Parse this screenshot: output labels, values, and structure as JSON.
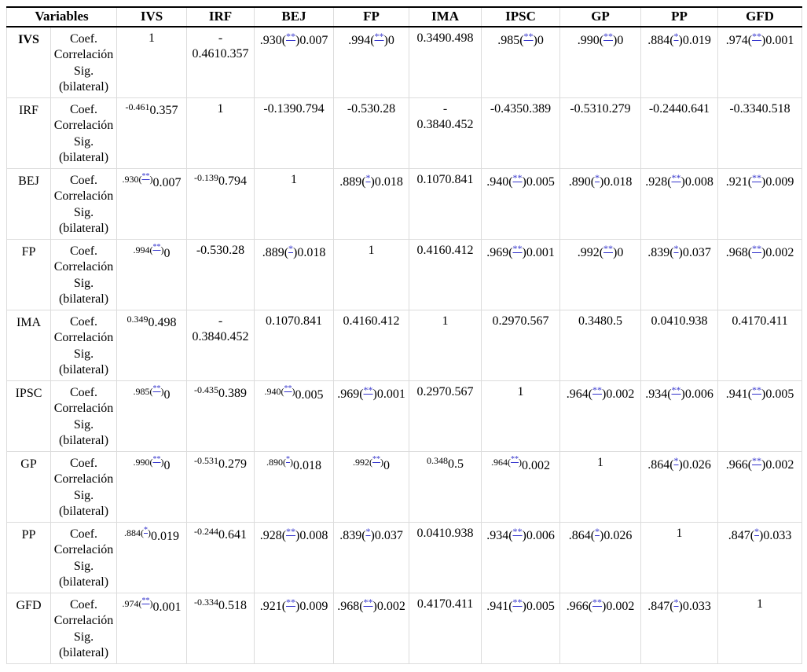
{
  "colors": {
    "sig_link": "#3333cc",
    "grid_line": "#dcdcdc",
    "header_rule": "#000000",
    "text": "#000000",
    "page_background": "#ffffff"
  },
  "table": {
    "header": {
      "variables_label": "Variables",
      "columns": [
        "IVS",
        "IRF",
        "BEJ",
        "FP",
        "IMA",
        "IPSC",
        "GP",
        "PP",
        "GFD"
      ]
    },
    "measure_label": "Coef.\nCorrelación\nSig.\n(bilateral)",
    "rows": [
      {
        "variable": "IVS",
        "cells": [
          [
            {
              "t": "1",
              "s": "n"
            }
          ],
          [
            {
              "t": "-\n0.4610.357",
              "s": "n"
            }
          ],
          [
            {
              "t": ".930(",
              "s": "n"
            },
            {
              "t": "**",
              "s": "m"
            },
            {
              "t": ")0.007",
              "s": "n"
            }
          ],
          [
            {
              "t": ".994(",
              "s": "n"
            },
            {
              "t": "**",
              "s": "m"
            },
            {
              "t": ")0",
              "s": "n"
            }
          ],
          [
            {
              "t": "0.3490.498",
              "s": "n"
            }
          ],
          [
            {
              "t": ".985(",
              "s": "n"
            },
            {
              "t": "**",
              "s": "m"
            },
            {
              "t": ")0",
              "s": "n"
            }
          ],
          [
            {
              "t": ".990(",
              "s": "n"
            },
            {
              "t": "**",
              "s": "m"
            },
            {
              "t": ")0",
              "s": "n"
            }
          ],
          [
            {
              "t": ".884(",
              "s": "n"
            },
            {
              "t": "*",
              "s": "m"
            },
            {
              "t": ")0.019",
              "s": "n"
            }
          ],
          [
            {
              "t": ".974(",
              "s": "n"
            },
            {
              "t": "**",
              "s": "m"
            },
            {
              "t": ")0.001",
              "s": "n"
            }
          ]
        ]
      },
      {
        "variable": "IRF",
        "cells": [
          [
            {
              "t": "-0.461",
              "s": "s"
            },
            {
              "t": "0.357",
              "s": "n"
            }
          ],
          [
            {
              "t": "1",
              "s": "n"
            }
          ],
          [
            {
              "t": "-0.1390.794",
              "s": "n"
            }
          ],
          [
            {
              "t": "-0.530.28",
              "s": "n"
            }
          ],
          [
            {
              "t": "-\n0.3840.452",
              "s": "n"
            }
          ],
          [
            {
              "t": "-0.4350.389",
              "s": "n"
            }
          ],
          [
            {
              "t": "-0.5310.279",
              "s": "n"
            }
          ],
          [
            {
              "t": "-0.2440.641",
              "s": "n"
            }
          ],
          [
            {
              "t": "-0.3340.518",
              "s": "n"
            }
          ]
        ]
      },
      {
        "variable": "BEJ",
        "cells": [
          [
            {
              "t": ".930(",
              "s": "s"
            },
            {
              "t": "**",
              "s": "ms"
            },
            {
              "t": ")",
              "s": "s"
            },
            {
              "t": "0.007",
              "s": "n"
            }
          ],
          [
            {
              "t": "-0.139",
              "s": "s"
            },
            {
              "t": "0.794",
              "s": "n"
            }
          ],
          [
            {
              "t": "1",
              "s": "n"
            }
          ],
          [
            {
              "t": ".889(",
              "s": "n"
            },
            {
              "t": "*",
              "s": "m"
            },
            {
              "t": ")0.018",
              "s": "n"
            }
          ],
          [
            {
              "t": "0.1070.841",
              "s": "n"
            }
          ],
          [
            {
              "t": ".940(",
              "s": "n"
            },
            {
              "t": "**",
              "s": "m"
            },
            {
              "t": ")0.005",
              "s": "n"
            }
          ],
          [
            {
              "t": ".890(",
              "s": "n"
            },
            {
              "t": "*",
              "s": "m"
            },
            {
              "t": ")0.018",
              "s": "n"
            }
          ],
          [
            {
              "t": ".928(",
              "s": "n"
            },
            {
              "t": "**",
              "s": "m"
            },
            {
              "t": ")0.008",
              "s": "n"
            }
          ],
          [
            {
              "t": ".921(",
              "s": "n"
            },
            {
              "t": "**",
              "s": "m"
            },
            {
              "t": ")0.009",
              "s": "n"
            }
          ]
        ]
      },
      {
        "variable": "FP",
        "cells": [
          [
            {
              "t": ".994(",
              "s": "s"
            },
            {
              "t": "**",
              "s": "ms"
            },
            {
              "t": ")",
              "s": "s"
            },
            {
              "t": "0",
              "s": "n"
            }
          ],
          [
            {
              "t": "-0.530.28",
              "s": "n"
            }
          ],
          [
            {
              "t": ".889(",
              "s": "n"
            },
            {
              "t": "*",
              "s": "m"
            },
            {
              "t": ")0.018",
              "s": "n"
            }
          ],
          [
            {
              "t": "1",
              "s": "n"
            }
          ],
          [
            {
              "t": "0.4160.412",
              "s": "n"
            }
          ],
          [
            {
              "t": ".969(",
              "s": "n"
            },
            {
              "t": "**",
              "s": "m"
            },
            {
              "t": ")0.001",
              "s": "n"
            }
          ],
          [
            {
              "t": ".992(",
              "s": "n"
            },
            {
              "t": "**",
              "s": "m"
            },
            {
              "t": ")0",
              "s": "n"
            }
          ],
          [
            {
              "t": ".839(",
              "s": "n"
            },
            {
              "t": "*",
              "s": "m"
            },
            {
              "t": ")0.037",
              "s": "n"
            }
          ],
          [
            {
              "t": ".968(",
              "s": "n"
            },
            {
              "t": "**",
              "s": "m"
            },
            {
              "t": ")0.002",
              "s": "n"
            }
          ]
        ]
      },
      {
        "variable": "IMA",
        "cells": [
          [
            {
              "t": "0.349",
              "s": "s"
            },
            {
              "t": "0.498",
              "s": "n"
            }
          ],
          [
            {
              "t": "-\n0.3840.452",
              "s": "n"
            }
          ],
          [
            {
              "t": "0.1070.841",
              "s": "n"
            }
          ],
          [
            {
              "t": "0.4160.412",
              "s": "n"
            }
          ],
          [
            {
              "t": "1",
              "s": "n"
            }
          ],
          [
            {
              "t": "0.2970.567",
              "s": "n"
            }
          ],
          [
            {
              "t": "0.3480.5",
              "s": "n"
            }
          ],
          [
            {
              "t": "0.0410.938",
              "s": "n"
            }
          ],
          [
            {
              "t": "0.4170.411",
              "s": "n"
            }
          ]
        ]
      },
      {
        "variable": "IPSC",
        "cells": [
          [
            {
              "t": ".985(",
              "s": "s"
            },
            {
              "t": "**",
              "s": "ms"
            },
            {
              "t": ")",
              "s": "s"
            },
            {
              "t": "0",
              "s": "n"
            }
          ],
          [
            {
              "t": "-0.435",
              "s": "s"
            },
            {
              "t": "0.389",
              "s": "n"
            }
          ],
          [
            {
              "t": ".940(",
              "s": "s"
            },
            {
              "t": "**",
              "s": "ms"
            },
            {
              "t": ")",
              "s": "s"
            },
            {
              "t": "0.005",
              "s": "n"
            }
          ],
          [
            {
              "t": ".969(",
              "s": "n"
            },
            {
              "t": "**",
              "s": "m"
            },
            {
              "t": ")0.001",
              "s": "n"
            }
          ],
          [
            {
              "t": "0.2970.567",
              "s": "n"
            }
          ],
          [
            {
              "t": "1",
              "s": "n"
            }
          ],
          [
            {
              "t": ".964(",
              "s": "n"
            },
            {
              "t": "**",
              "s": "m"
            },
            {
              "t": ")0.002",
              "s": "n"
            }
          ],
          [
            {
              "t": ".934(",
              "s": "n"
            },
            {
              "t": "**",
              "s": "m"
            },
            {
              "t": ")0.006",
              "s": "n"
            }
          ],
          [
            {
              "t": ".941(",
              "s": "n"
            },
            {
              "t": "**",
              "s": "m"
            },
            {
              "t": ")0.005",
              "s": "n"
            }
          ]
        ]
      },
      {
        "variable": "GP",
        "cells": [
          [
            {
              "t": ".990(",
              "s": "s"
            },
            {
              "t": "**",
              "s": "ms"
            },
            {
              "t": ")",
              "s": "s"
            },
            {
              "t": "0",
              "s": "n"
            }
          ],
          [
            {
              "t": "-0.531",
              "s": "s"
            },
            {
              "t": "0.279",
              "s": "n"
            }
          ],
          [
            {
              "t": ".890(",
              "s": "s"
            },
            {
              "t": "*",
              "s": "ms"
            },
            {
              "t": ")",
              "s": "s"
            },
            {
              "t": "0.018",
              "s": "n"
            }
          ],
          [
            {
              "t": ".992(",
              "s": "s"
            },
            {
              "t": "**",
              "s": "ms"
            },
            {
              "t": ")",
              "s": "s"
            },
            {
              "t": "0",
              "s": "n"
            }
          ],
          [
            {
              "t": "0.348",
              "s": "s"
            },
            {
              "t": "0.5",
              "s": "n"
            }
          ],
          [
            {
              "t": ".964(",
              "s": "s"
            },
            {
              "t": "**",
              "s": "ms"
            },
            {
              "t": ")",
              "s": "s"
            },
            {
              "t": "0.002",
              "s": "n"
            }
          ],
          [
            {
              "t": "1",
              "s": "n"
            }
          ],
          [
            {
              "t": ".864(",
              "s": "n"
            },
            {
              "t": "*",
              "s": "m"
            },
            {
              "t": ")0.026",
              "s": "n"
            }
          ],
          [
            {
              "t": ".966(",
              "s": "n"
            },
            {
              "t": "**",
              "s": "m"
            },
            {
              "t": ")0.002",
              "s": "n"
            }
          ]
        ]
      },
      {
        "variable": "PP",
        "cells": [
          [
            {
              "t": ".884(",
              "s": "s"
            },
            {
              "t": "*",
              "s": "ms"
            },
            {
              "t": ")",
              "s": "s"
            },
            {
              "t": "0.019",
              "s": "n"
            }
          ],
          [
            {
              "t": "-0.244",
              "s": "s"
            },
            {
              "t": "0.641",
              "s": "n"
            }
          ],
          [
            {
              "t": ".928(",
              "s": "n"
            },
            {
              "t": "**",
              "s": "m"
            },
            {
              "t": ")0.008",
              "s": "n"
            }
          ],
          [
            {
              "t": ".839(",
              "s": "n"
            },
            {
              "t": "*",
              "s": "m"
            },
            {
              "t": ")0.037",
              "s": "n"
            }
          ],
          [
            {
              "t": "0.0410.938",
              "s": "n"
            }
          ],
          [
            {
              "t": ".934(",
              "s": "n"
            },
            {
              "t": "**",
              "s": "m"
            },
            {
              "t": ")0.006",
              "s": "n"
            }
          ],
          [
            {
              "t": ".864(",
              "s": "n"
            },
            {
              "t": "*",
              "s": "m"
            },
            {
              "t": ")0.026",
              "s": "n"
            }
          ],
          [
            {
              "t": "1",
              "s": "n"
            }
          ],
          [
            {
              "t": ".847(",
              "s": "n"
            },
            {
              "t": "*",
              "s": "m"
            },
            {
              "t": ")0.033",
              "s": "n"
            }
          ]
        ]
      },
      {
        "variable": "GFD",
        "cells": [
          [
            {
              "t": ".974(",
              "s": "s"
            },
            {
              "t": "**",
              "s": "ms"
            },
            {
              "t": ")",
              "s": "s"
            },
            {
              "t": "0.001",
              "s": "n"
            }
          ],
          [
            {
              "t": "-0.334",
              "s": "s"
            },
            {
              "t": "0.518",
              "s": "n"
            }
          ],
          [
            {
              "t": ".921(",
              "s": "n"
            },
            {
              "t": "**",
              "s": "m"
            },
            {
              "t": ")0.009",
              "s": "n"
            }
          ],
          [
            {
              "t": ".968(",
              "s": "n"
            },
            {
              "t": "**",
              "s": "m"
            },
            {
              "t": ")0.002",
              "s": "n"
            }
          ],
          [
            {
              "t": "0.4170.411",
              "s": "n"
            }
          ],
          [
            {
              "t": ".941(",
              "s": "n"
            },
            {
              "t": "**",
              "s": "m"
            },
            {
              "t": ")0.005",
              "s": "n"
            }
          ],
          [
            {
              "t": ".966(",
              "s": "n"
            },
            {
              "t": "**",
              "s": "m"
            },
            {
              "t": ")0.002",
              "s": "n"
            }
          ],
          [
            {
              "t": ".847(",
              "s": "n"
            },
            {
              "t": "*",
              "s": "m"
            },
            {
              "t": ")0.033",
              "s": "n"
            }
          ],
          [
            {
              "t": "1",
              "s": "n"
            }
          ]
        ]
      }
    ]
  }
}
